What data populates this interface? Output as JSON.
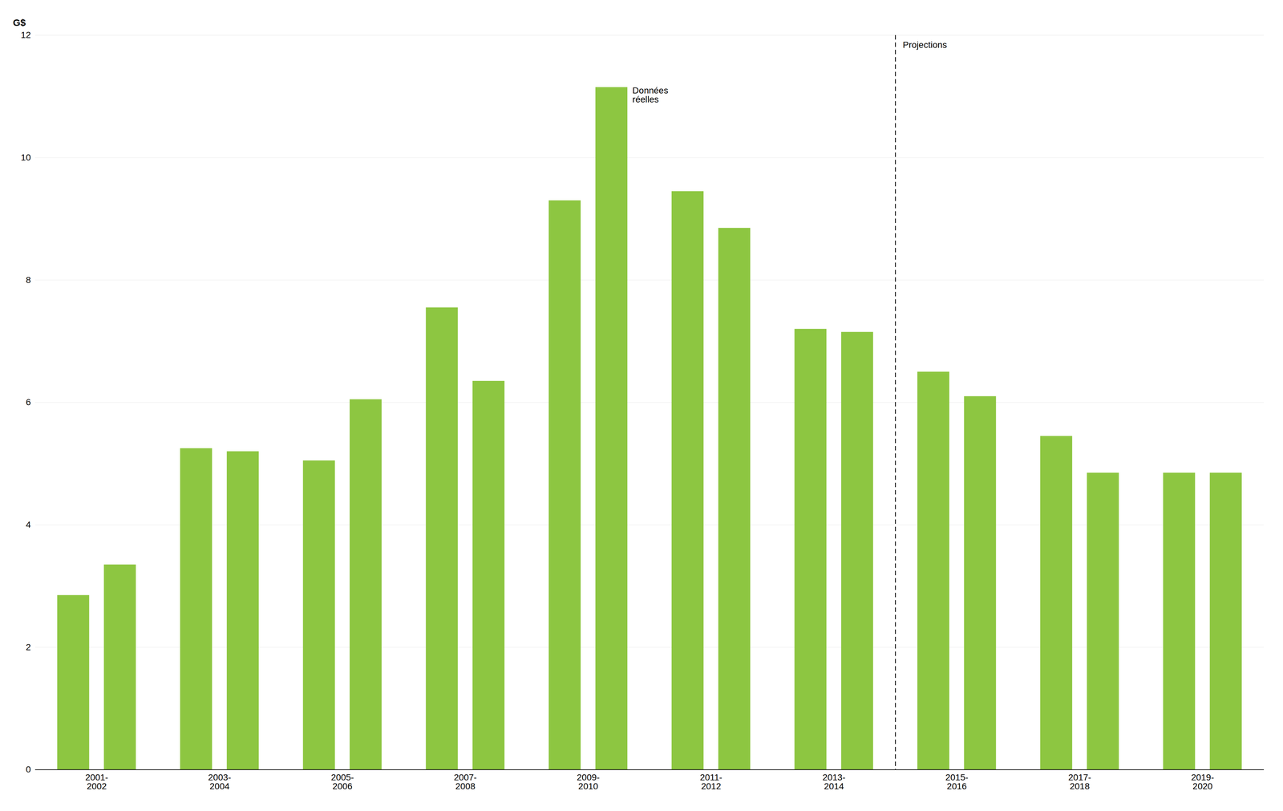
{
  "chart_data": {
    "type": "bar",
    "categories": [
      "2001-\n2002",
      "2003-\n2004",
      "2005-\n2006",
      "2007-\n2008",
      "2009-\n2010",
      "2011-\n2012",
      "2013-\n2014",
      "2015-\n2016",
      "2017-\n2018",
      "2019-\n2020"
    ],
    "series": [
      {
        "color": "#8DC641",
        "values": [
          2.85,
          5.25,
          5.05,
          7.55,
          9.3,
          9.45,
          7.2,
          6.5,
          5.45,
          4.85
        ]
      },
      {
        "color": "#8DC641",
        "values": [
          3.35,
          5.2,
          6.05,
          6.35,
          11.15,
          8.85,
          7.15,
          6.1,
          4.85,
          4.85
        ]
      }
    ],
    "ylabel": "G$",
    "ylim": [
      0,
      12
    ],
    "yticks": [
      0,
      2,
      4,
      6,
      8,
      10,
      12
    ],
    "grid": true,
    "annotations": [
      {
        "text": "Données\nréelles",
        "category": "2009-\n2010"
      },
      {
        "text": "Projections",
        "category": "2015-\n2016",
        "line_style": "dashed"
      }
    ]
  }
}
